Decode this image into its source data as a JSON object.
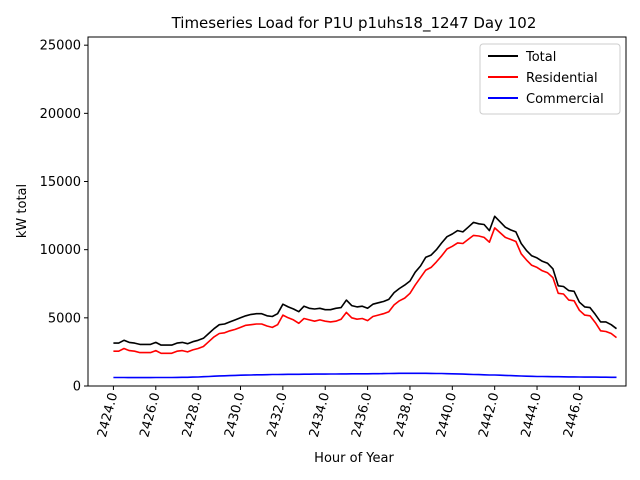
{
  "chart_data": {
    "type": "line",
    "title": "Timeseries Load for P1U p1uhs18_1247  Day 102",
    "xlabel": "Hour of Year",
    "ylabel": "kW total",
    "xlim": [
      2422.8,
      2448.2
    ],
    "ylim": [
      0,
      25600
    ],
    "xticks": [
      2424,
      2426,
      2428,
      2430,
      2432,
      2434,
      2436,
      2438,
      2440,
      2442,
      2444,
      2446
    ],
    "xtick_labels": [
      "2424.0",
      "2426.0",
      "2428.0",
      "2430.0",
      "2432.0",
      "2434.0",
      "2436.0",
      "2438.0",
      "2440.0",
      "2442.0",
      "2444.0",
      "2446.0"
    ],
    "yticks": [
      0,
      5000,
      10000,
      15000,
      20000,
      25000
    ],
    "ytick_labels": [
      "0",
      "5000",
      "10000",
      "15000",
      "20000",
      "25000"
    ],
    "legend_position": "top-right",
    "x": [
      2424.0,
      2424.25,
      2424.5,
      2424.75,
      2425.0,
      2425.25,
      2425.5,
      2425.75,
      2426.0,
      2426.25,
      2426.5,
      2426.75,
      2427.0,
      2427.25,
      2427.5,
      2427.75,
      2428.0,
      2428.25,
      2428.5,
      2428.75,
      2429.0,
      2429.25,
      2429.5,
      2429.75,
      2430.0,
      2430.25,
      2430.5,
      2430.75,
      2431.0,
      2431.25,
      2431.5,
      2431.75,
      2432.0,
      2432.25,
      2432.5,
      2432.75,
      2433.0,
      2433.25,
      2433.5,
      2433.75,
      2434.0,
      2434.25,
      2434.5,
      2434.75,
      2435.0,
      2435.25,
      2435.5,
      2435.75,
      2436.0,
      2436.25,
      2436.5,
      2436.75,
      2437.0,
      2437.25,
      2437.5,
      2437.75,
      2438.0,
      2438.25,
      2438.5,
      2438.75,
      2439.0,
      2439.25,
      2439.5,
      2439.75,
      2440.0,
      2440.25,
      2440.5,
      2440.75,
      2441.0,
      2441.25,
      2441.5,
      2441.75,
      2442.0,
      2442.25,
      2442.5,
      2442.75,
      2443.0,
      2443.25,
      2443.5,
      2443.75,
      2444.0,
      2444.25,
      2444.5,
      2444.75,
      2445.0,
      2445.25,
      2445.5,
      2445.75,
      2446.0,
      2446.25,
      2446.5,
      2446.75,
      2447.0,
      2447.25,
      2447.5,
      2447.75
    ],
    "series": [
      {
        "name": "Total",
        "color": "#000000",
        "values": [
          3150,
          3150,
          3350,
          3200,
          3150,
          3050,
          3050,
          3050,
          3200,
          3000,
          3000,
          3000,
          3150,
          3200,
          3100,
          3250,
          3350,
          3500,
          3850,
          4200,
          4500,
          4550,
          4700,
          4850,
          5000,
          5150,
          5250,
          5300,
          5300,
          5150,
          5100,
          5300,
          6000,
          5800,
          5650,
          5450,
          5850,
          5700,
          5650,
          5700,
          5600,
          5600,
          5700,
          5750,
          6300,
          5900,
          5800,
          5850,
          5700,
          6000,
          6100,
          6200,
          6350,
          6850,
          7150,
          7400,
          7700,
          8350,
          8800,
          9450,
          9600,
          10000,
          10500,
          10950,
          11150,
          11400,
          11300,
          11650,
          12000,
          11900,
          11850,
          11400,
          12450,
          12050,
          11650,
          11450,
          11300,
          10450,
          9950,
          9550,
          9400,
          9150,
          9000,
          8600,
          7350,
          7300,
          7000,
          6950,
          6150,
          5800,
          5750,
          5250,
          4700,
          4700,
          4500,
          4200
        ]
      },
      {
        "name": "Residential",
        "color": "#ff0000",
        "values": [
          2550,
          2550,
          2750,
          2600,
          2550,
          2450,
          2450,
          2450,
          2600,
          2400,
          2400,
          2400,
          2550,
          2600,
          2500,
          2650,
          2750,
          2900,
          3250,
          3600,
          3850,
          3900,
          4050,
          4150,
          4300,
          4450,
          4500,
          4550,
          4550,
          4400,
          4300,
          4500,
          5200,
          5000,
          4850,
          4600,
          4950,
          4850,
          4750,
          4850,
          4750,
          4700,
          4750,
          4900,
          5400,
          5000,
          4900,
          4950,
          4800,
          5100,
          5200,
          5300,
          5450,
          5950,
          6250,
          6450,
          6800,
          7400,
          7950,
          8500,
          8700,
          9100,
          9550,
          10050,
          10250,
          10500,
          10450,
          10750,
          11050,
          11000,
          10900,
          10550,
          11600,
          11250,
          10900,
          10750,
          10600,
          9700,
          9250,
          8850,
          8700,
          8450,
          8300,
          7950,
          6800,
          6750,
          6300,
          6250,
          5550,
          5200,
          5150,
          4650,
          4050,
          4000,
          3850,
          3550
        ]
      },
      {
        "name": "Commercial",
        "color": "#0000ff",
        "values": [
          620,
          620,
          620,
          615,
          615,
          615,
          615,
          615,
          620,
          620,
          625,
          625,
          630,
          635,
          640,
          650,
          660,
          680,
          700,
          720,
          740,
          750,
          760,
          780,
          790,
          800,
          810,
          820,
          825,
          830,
          840,
          845,
          850,
          855,
          860,
          860,
          865,
          865,
          870,
          870,
          875,
          880,
          880,
          885,
          890,
          895,
          895,
          895,
          895,
          900,
          905,
          910,
          920,
          925,
          930,
          935,
          935,
          935,
          935,
          930,
          925,
          920,
          915,
          905,
          895,
          885,
          875,
          860,
          845,
          835,
          820,
          810,
          810,
          795,
          780,
          765,
          745,
          730,
          720,
          710,
          700,
          695,
          690,
          685,
          680,
          675,
          670,
          665,
          660,
          655,
          650,
          650,
          645,
          645,
          640,
          640
        ]
      }
    ]
  }
}
